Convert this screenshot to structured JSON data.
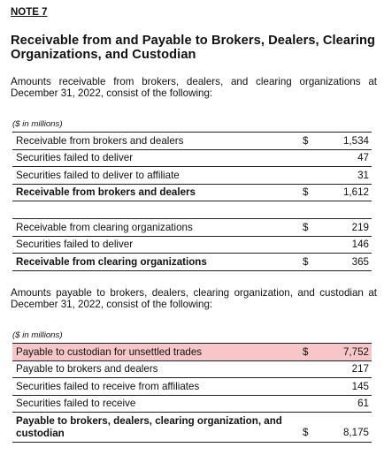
{
  "note_label": "NOTE 7",
  "title": "Receivable from and Payable to Brokers, Dealers, Clearing Organizations, and Custodian",
  "intro_receivable": "Amounts receivable from brokers, dealers, and clearing organizations at December 31, 2022, consist of the following:",
  "units_1": "($ in millions)",
  "table_brokers": [
    {
      "label": "Receivable from brokers and dealers",
      "currency": "$",
      "amount": "1,534"
    },
    {
      "label": "Securities failed to deliver",
      "currency": "",
      "amount": "47"
    },
    {
      "label": "Securities failed to deliver to affiliate",
      "currency": "",
      "amount": "31"
    },
    {
      "label": "Receivable from brokers and dealers",
      "currency": "$",
      "amount": "1,612"
    }
  ],
  "table_clearing": [
    {
      "label": "Receivable from clearing organizations",
      "currency": "$",
      "amount": "219"
    },
    {
      "label": "Securities failed to deliver",
      "currency": "",
      "amount": "146"
    },
    {
      "label": "Receivable from clearing organizations",
      "currency": "$",
      "amount": "365"
    }
  ],
  "intro_payable": "Amounts payable to brokers, dealers, clearing organization, and custodian at December 31, 2022, consist of the following:",
  "units_2": "($ in millions)",
  "table_payable": [
    {
      "label": "Payable to custodian for unsettled trades",
      "currency": "$",
      "amount": "7,752"
    },
    {
      "label": "Payable to brokers and dealers",
      "currency": "",
      "amount": "217"
    },
    {
      "label": "Securities failed to receive from affiliates",
      "currency": "",
      "amount": "145"
    },
    {
      "label": "Securities failed to receive",
      "currency": "",
      "amount": "61"
    },
    {
      "label": "Payable to brokers, dealers, clearing organization, and custodian",
      "currency": "$",
      "amount": "8,175"
    }
  ],
  "highlight_color": "#f7c6c9"
}
